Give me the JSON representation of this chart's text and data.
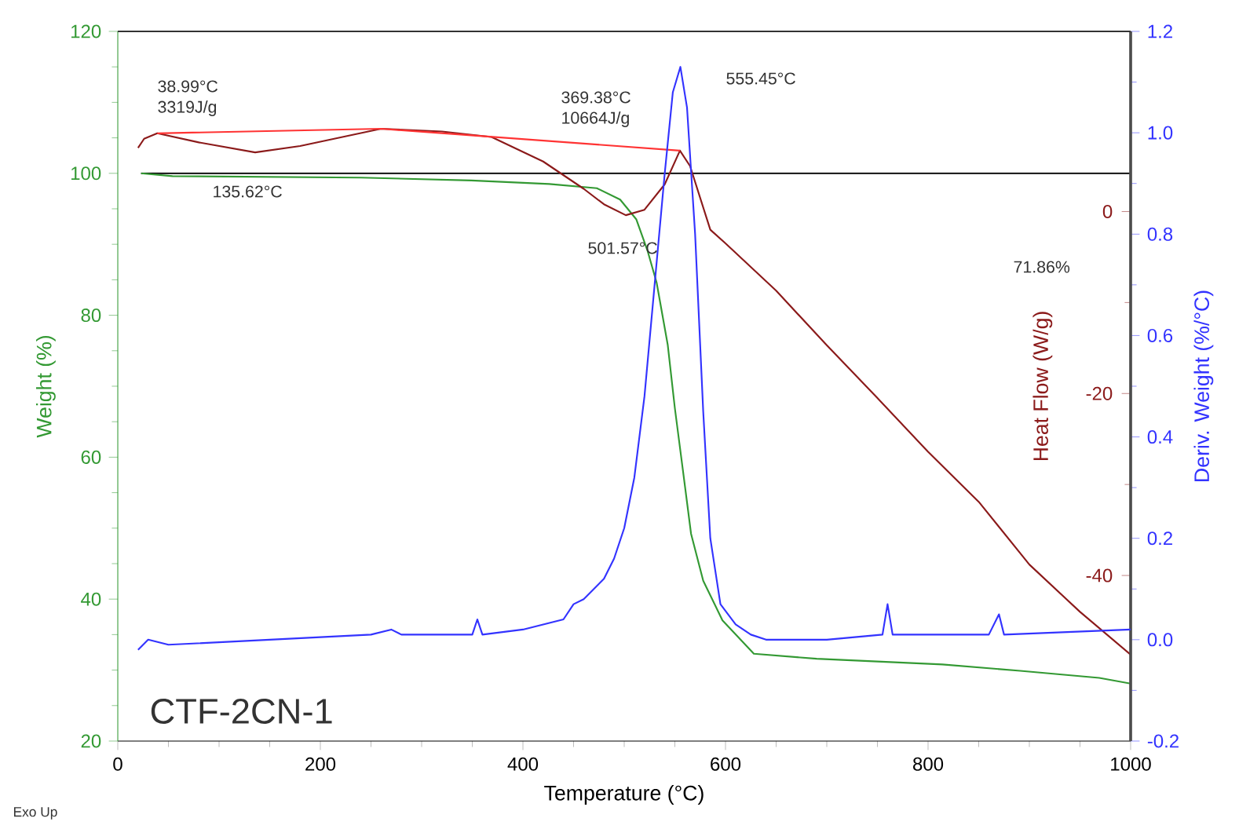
{
  "chart_data": {
    "type": "line",
    "xlabel": "Temperature (°C)",
    "ylabel": "Weight (%)",
    "y2label": "Heat Flow (W/g)",
    "y3label": "Deriv. Weight (%/°C)",
    "xlim": [
      0,
      1000
    ],
    "xticks": [
      0,
      200,
      400,
      600,
      800,
      1000
    ],
    "ylim": [
      20,
      120
    ],
    "yticks": [
      20,
      40,
      60,
      80,
      100,
      120
    ],
    "y2lim": [
      -58.2,
      19.8
    ],
    "y2ticks": [
      -40,
      -20,
      0
    ],
    "y3lim": [
      -0.2,
      1.2
    ],
    "y3ticks": [
      {
        "value": -0.2,
        "label": "-0.2"
      },
      {
        "value": 0,
        "label": "0.0"
      },
      {
        "value": 0.2,
        "label": "0.2"
      },
      {
        "value": 0.4,
        "label": "0.4"
      },
      {
        "value": 0.6,
        "label": "0.6"
      },
      {
        "value": 0.8,
        "label": "0.8"
      },
      {
        "value": 1.0,
        "label": "1.0"
      },
      {
        "value": 1.2,
        "label": "1.2"
      }
    ],
    "series": [
      {
        "axis": "y",
        "color": "#339933",
        "x": [
          23,
          54,
          240,
          349,
          426,
          473,
          496,
          512,
          523,
          532,
          543,
          550,
          558,
          566,
          578,
          597,
          628,
          690,
          814,
          891,
          969,
          1000
        ],
        "values": [
          100,
          99.6,
          99.4,
          99.0,
          98.5,
          97.9,
          96.3,
          93.5,
          89.1,
          84.6,
          75.8,
          66.9,
          58.1,
          49.2,
          42.6,
          37.0,
          32.3,
          31.6,
          30.8,
          29.9,
          28.9,
          28.1
        ]
      },
      {
        "axis": "y2",
        "color": "#8b1a1a",
        "x": [
          20,
          26,
          39,
          80,
          135.62,
          180,
          260,
          320,
          369,
          420,
          460,
          480,
          501.57,
          520,
          540,
          555,
          565,
          585,
          600,
          650,
          700,
          750,
          800,
          850,
          900,
          950,
          1000
        ],
        "values": [
          7.0,
          8.0,
          8.6,
          7.6,
          6.5,
          7.2,
          9.1,
          8.8,
          8.2,
          5.5,
          2.5,
          0.8,
          -0.4,
          0.2,
          3.0,
          6.7,
          5.0,
          -2.0,
          -3.5,
          -8.7,
          -14.7,
          -20.5,
          -26.4,
          -31.9,
          -38.8,
          -44.0,
          -48.7
        ]
      },
      {
        "axis": "y2",
        "color": "#ff3333",
        "x": [
          39,
          260,
          555
        ],
        "values": [
          8.6,
          9.1,
          6.7
        ]
      },
      {
        "axis": "y3",
        "color": "#3333ff",
        "x": [
          20,
          30,
          50,
          150,
          250,
          270,
          280,
          350,
          355,
          360,
          400,
          440,
          450,
          460,
          480,
          490,
          500,
          510,
          520,
          530,
          540,
          548,
          555.45,
          562,
          570,
          578,
          585,
          595,
          610,
          625,
          640,
          700,
          755,
          760,
          765,
          860,
          870,
          875,
          1000
        ],
        "values": [
          -0.02,
          0.0,
          -0.01,
          0.0,
          0.01,
          0.02,
          0.01,
          0.01,
          0.04,
          0.01,
          0.02,
          0.04,
          0.07,
          0.08,
          0.12,
          0.16,
          0.22,
          0.32,
          0.48,
          0.7,
          0.92,
          1.08,
          1.13,
          1.05,
          0.8,
          0.45,
          0.2,
          0.07,
          0.03,
          0.01,
          0.0,
          0.0,
          0.01,
          0.07,
          0.01,
          0.01,
          0.05,
          0.01,
          0.02
        ]
      }
    ],
    "ref_lines": [
      {
        "axis": "y",
        "value": 100,
        "color": "#000000"
      }
    ],
    "annotations": [
      "38.99°C",
      "3319J/g",
      "135.62°C",
      "369.38°C",
      "10664J/g",
      "555.45°C",
      "501.57°C",
      "71.86%",
      "CTF-2CN-1",
      "Exo Up"
    ]
  }
}
